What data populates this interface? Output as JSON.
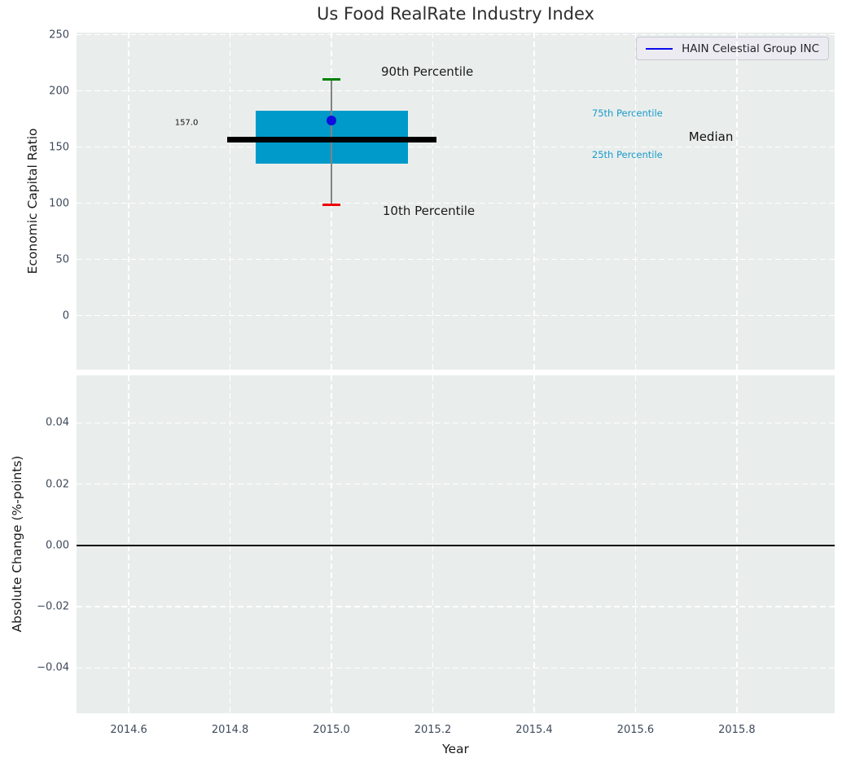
{
  "chart_data": {
    "type": "boxplot",
    "title": "Us Food RealRate Industry Index",
    "xlabel": "Year",
    "x": {
      "lim": [
        2014.497,
        2015.993
      ],
      "ticks": [
        2014.6,
        2014.8,
        2015.0,
        2015.2,
        2015.4,
        2015.6,
        2015.8
      ],
      "tick_labels": [
        "2014.6",
        "2014.8",
        "2015.0",
        "2015.2",
        "2015.4",
        "2015.6",
        "2015.8"
      ]
    },
    "colors": {
      "plot_bg": "#e9eeed",
      "grid": "#ffffff",
      "box_fill": "#009aca",
      "median_line": "#000000",
      "whisker": "#828282",
      "cap_90th": "#008000",
      "cap_10th": "#ee0000",
      "company_dot": "#0e0edd",
      "legend_line": "#0b0bf0",
      "percentile_text": "#1b9ac8",
      "tick_text": "#3e4a5c"
    },
    "subplots": [
      {
        "ylabel": "Economic Capital Ratio",
        "ylim": [
          -48,
          252
        ],
        "yticks": [
          250,
          200,
          150,
          100,
          50,
          0
        ],
        "ytick_labels": [
          "250",
          "200",
          "150",
          "100",
          "50",
          "0"
        ],
        "box": {
          "year": 2015.0,
          "p90": 210,
          "p75": 182.5,
          "median": 157,
          "p25": 135,
          "p10": 99,
          "box_x_left": 2014.851,
          "box_x_right": 2015.151,
          "median_x_left": 2014.795,
          "median_x_right": 2015.207,
          "cap_half_width": 0.0175,
          "company_value": 174
        },
        "legend": {
          "label": "HAIN Celestial Group INC"
        },
        "annotations": [
          {
            "text": "90th Percentile",
            "x": 2015.098,
            "y": 217,
            "color": "#1a1a1a",
            "size": 15,
            "anchor": "left"
          },
          {
            "text": "10th Percentile",
            "x": 2015.101,
            "y": 93,
            "color": "#1a1a1a",
            "size": 15,
            "anchor": "left"
          },
          {
            "text": "75th Percentile",
            "x": 2015.514,
            "y": 180,
            "color": "#1b9ac8",
            "size": 11.5,
            "anchor": "left"
          },
          {
            "text": "25th Percentile",
            "x": 2015.514,
            "y": 143,
            "color": "#1b9ac8",
            "size": 11.5,
            "anchor": "left"
          },
          {
            "text": "Median",
            "x": 2015.705,
            "y": 159,
            "color": "#111111",
            "size": 15,
            "anchor": "left"
          },
          {
            "text": "157.0",
            "x": 2014.737,
            "y": 171.5,
            "color": "#111111",
            "size": 10,
            "anchor": "right"
          }
        ]
      },
      {
        "ylabel": "Absolute Change (%-points)",
        "ylim": [
          -0.0548,
          0.0555
        ],
        "yticks": [
          0.04,
          0.02,
          0.0,
          -0.02,
          -0.04
        ],
        "ytick_labels": [
          "0.04",
          "0.02",
          "0.00",
          "−0.02",
          "−0.04"
        ],
        "zero_line": 0.0
      }
    ]
  }
}
